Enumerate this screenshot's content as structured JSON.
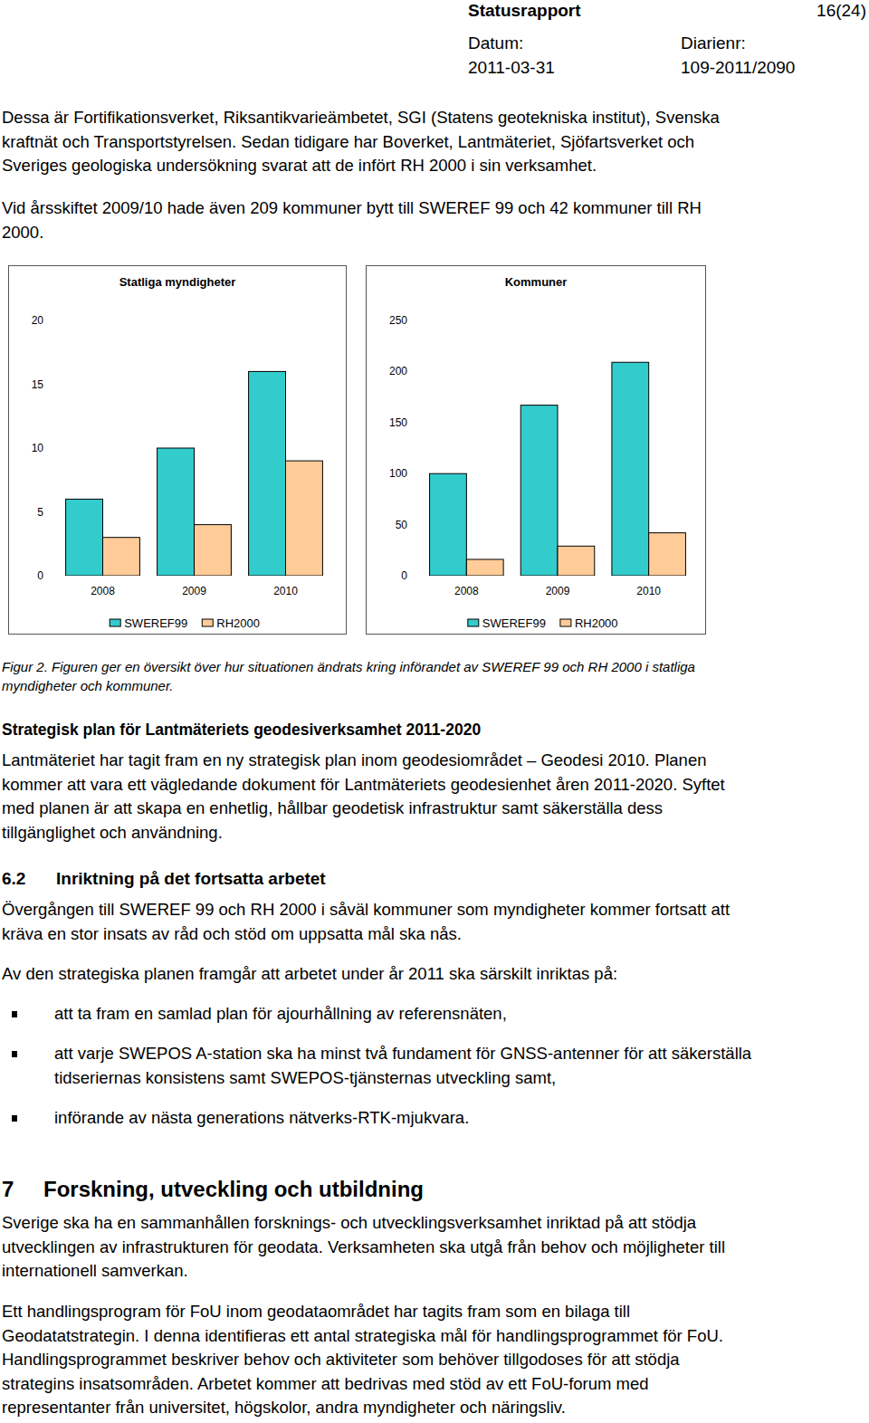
{
  "header": {
    "title": "Statusrapport",
    "page": "16(24)",
    "date_label": "Datum:",
    "date": "2011-03-31",
    "ref_label": "Diarienr:",
    "ref": "109-2011/2090"
  },
  "blocks": [
    {
      "type": "paragraph",
      "lines": [
        "Dessa är Fortifikationsverket, Riksantikvarieämbetet, SGI (Statens geotekniska institut), Svenska",
        "kraftnät och Transportstyrelsen. Sedan tidigare har Boverket, Lantmäteriet, Sjöfartsverket och",
        "Sveriges geologiska undersökning svarat att de infört RH 2000 i sin verksamhet."
      ]
    },
    {
      "type": "paragraph",
      "lines": [
        "Vid årsskiftet 2009/10 hade även 209 kommuner bytt till SWEREF 99 och 42 kommuner till RH",
        "2000."
      ]
    },
    {
      "type": "figure",
      "caption": [
        "Figur 2. Figuren ger en översikt över hur situationen ändrats kring införandet av SWEREF 99 och RH 2000 i statliga",
        "myndigheter och kommuner."
      ]
    },
    {
      "type": "heading",
      "text": "Strategisk plan för Lantmäteriets geodesiverksamhet 2011-2020"
    },
    {
      "type": "paragraph",
      "lines": [
        "Lantmäteriet har tagit fram en ny strategisk plan inom geodesiområdet – Geodesi 2010. Planen",
        "kommer att vara ett vägledande dokument för Lantmäteriets geodesienhet åren 2011-2020. Syftet",
        "med planen är att skapa en enhetlig, hållbar geodetisk infrastruktur samt säkerställa dess",
        "tillgänglighet och användning."
      ]
    },
    {
      "type": "section",
      "number": "6.2",
      "text": "Inriktning på det fortsatta arbetet"
    },
    {
      "type": "paragraph",
      "lines": [
        "Övergången till SWEREF 99 och RH 2000 i såväl kommuner som myndigheter kommer fortsatt att",
        "kräva en stor insats av råd och stöd om uppsatta mål ska nås."
      ]
    },
    {
      "type": "paragraph",
      "lines": [
        "Av den strategiska planen framgår att arbetet under år 2011 ska särskilt inriktas på:"
      ]
    },
    {
      "type": "list",
      "items": [
        [
          "att ta fram en samlad plan för ajourhållning av referensnäten,"
        ],
        [
          "att varje SWEPOS A-station ska ha minst två fundament för GNSS-antenner för att säkerställa",
          "tidseriernas konsistens samt SWEPOS-tjänsternas utveckling samt,"
        ],
        [
          "införande av nästa generations nätverks-RTK-mjukvara."
        ]
      ]
    },
    {
      "type": "chapter",
      "number": "7",
      "text": "Forskning, utveckling och utbildning"
    },
    {
      "type": "paragraph",
      "lines": [
        "Sverige ska ha en sammanhållen forsknings- och utvecklingsverksamhet inriktad på att stödja",
        "utvecklingen av infrastrukturen för geodata. Verksamheten ska utgå från behov och möjligheter till",
        "internationell samverkan."
      ]
    },
    {
      "type": "paragraph",
      "lines": [
        "Ett handlingsprogram för FoU inom geodataområdet har tagits fram som en bilaga till",
        "Geodatatstrategin. I denna identifieras ett antal strategiska mål för handlingsprogrammet för FoU.",
        "Handlingsprogrammet beskriver behov och aktiviteter som behöver tillgodoses för att stödja",
        "strategins insatsområden. Arbetet kommer att bedrivas med stöd av ett FoU-forum med",
        "representanter från universitet, högskolor, andra myndigheter och näringsliv."
      ]
    }
  ],
  "chart_data": [
    {
      "type": "bar",
      "title": "Statliga myndigheter",
      "categories": [
        "2008",
        "2009",
        "2010"
      ],
      "series": [
        {
          "name": "SWEREF99",
          "color": "#33cccc",
          "values": [
            6,
            10,
            16
          ]
        },
        {
          "name": "RH2000",
          "color": "#ffcc99",
          "values": [
            3,
            4,
            9
          ]
        }
      ],
      "ylim": [
        0,
        20
      ],
      "yticks": [
        0,
        5,
        10,
        15,
        20
      ],
      "grid": false,
      "legend": "bottom"
    },
    {
      "type": "bar",
      "title": "Kommuner",
      "categories": [
        "2008",
        "2009",
        "2010"
      ],
      "series": [
        {
          "name": "SWEREF99",
          "color": "#33cccc",
          "values": [
            100,
            167,
            209
          ]
        },
        {
          "name": "RH2000",
          "color": "#ffcc99",
          "values": [
            16,
            29,
            42
          ]
        }
      ],
      "ylim": [
        0,
        250
      ],
      "yticks": [
        0,
        50,
        100,
        150,
        200,
        250
      ],
      "grid": false,
      "legend": "bottom"
    }
  ]
}
